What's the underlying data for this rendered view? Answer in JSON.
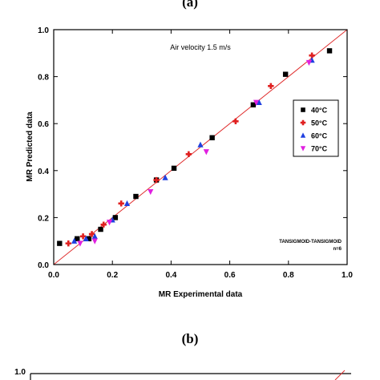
{
  "panel_a_label": "(a)",
  "panel_b_label": "(b)",
  "chart_data": [
    {
      "panel": "(a)",
      "type": "scatter",
      "xlabel": "MR Experimental data",
      "ylabel": "MR Predicted data",
      "xlim": [
        0,
        1
      ],
      "ylim": [
        0,
        1
      ],
      "x_ticks": [
        "0.0",
        "0.2",
        "0.4",
        "0.6",
        "0.8",
        "1.0"
      ],
      "y_ticks": [
        "0.0",
        "0.2",
        "0.4",
        "0.6",
        "0.8",
        "1.0"
      ],
      "annotation": "Air velocity 1.5 m/s",
      "model_label": "TANSIGMOID-TANSIGMOID",
      "model_sublabel": "n=6",
      "legend_position": "right",
      "fit_line": {
        "x": [
          0,
          1
        ],
        "y": [
          0,
          1
        ],
        "color": "#e03030"
      },
      "series": [
        {
          "name": "40°C",
          "marker": "square",
          "color": "#000000",
          "x": [
            0.02,
            0.08,
            0.12,
            0.16,
            0.21,
            0.28,
            0.35,
            0.41,
            0.54,
            0.68,
            0.79,
            0.94
          ],
          "y": [
            0.09,
            0.11,
            0.11,
            0.15,
            0.2,
            0.29,
            0.36,
            0.41,
            0.54,
            0.68,
            0.81,
            0.91
          ]
        },
        {
          "name": "50°C",
          "marker": "plus",
          "color": "#e02020",
          "x": [
            0.05,
            0.1,
            0.13,
            0.17,
            0.23,
            0.35,
            0.46,
            0.62,
            0.74,
            0.88
          ],
          "y": [
            0.09,
            0.12,
            0.13,
            0.17,
            0.26,
            0.36,
            0.47,
            0.61,
            0.76,
            0.89
          ]
        },
        {
          "name": "60°C",
          "marker": "triangle-up",
          "color": "#2040e0",
          "x": [
            0.07,
            0.11,
            0.14,
            0.2,
            0.25,
            0.38,
            0.5,
            0.7,
            0.88
          ],
          "y": [
            0.1,
            0.11,
            0.12,
            0.19,
            0.26,
            0.37,
            0.51,
            0.69,
            0.87
          ]
        },
        {
          "name": "70°C",
          "marker": "triangle-down",
          "color": "#e020e0",
          "x": [
            0.09,
            0.14,
            0.19,
            0.33,
            0.52,
            0.69,
            0.87
          ],
          "y": [
            0.09,
            0.1,
            0.18,
            0.31,
            0.48,
            0.69,
            0.86
          ]
        }
      ]
    },
    {
      "panel": "(b)",
      "type": "scatter",
      "y_ticks": [
        "1.0"
      ]
    }
  ]
}
